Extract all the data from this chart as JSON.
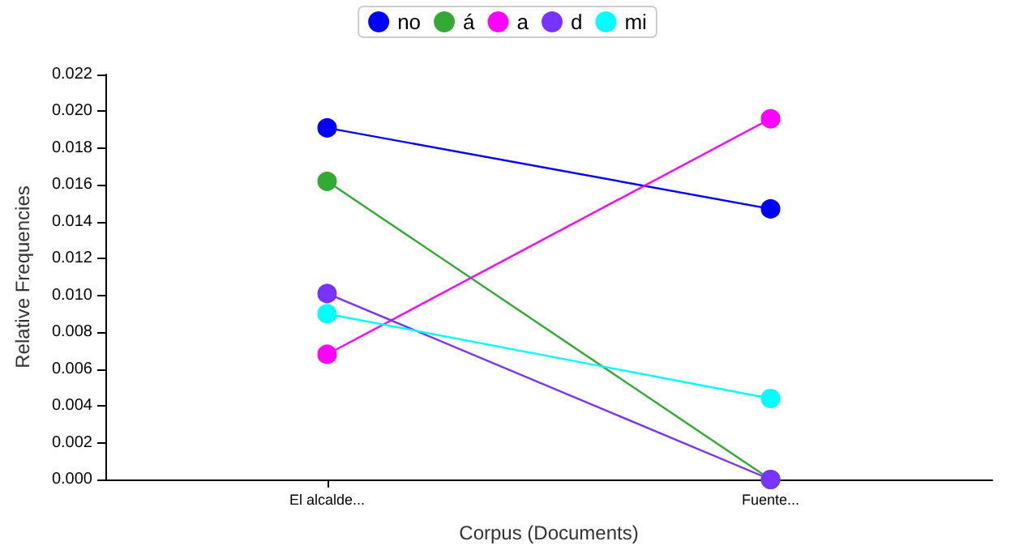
{
  "chart_data": {
    "type": "line",
    "xlabel": "Corpus (Documents)",
    "ylabel": "Relative Frequencies",
    "categories": [
      "El alcalde...",
      "Fuente..."
    ],
    "series": [
      {
        "name": "no",
        "color": "#0000ff",
        "values": [
          0.0191,
          0.0147
        ]
      },
      {
        "name": "á",
        "color": "#33aa33",
        "values": [
          0.0162,
          0
        ]
      },
      {
        "name": "a",
        "color": "#ff00ff",
        "values": [
          0.0068,
          0.0196
        ]
      },
      {
        "name": "d",
        "color": "#7733ff",
        "values": [
          0.0101,
          0
        ]
      },
      {
        "name": "mi",
        "color": "#00ffff",
        "values": [
          0.009,
          0.0044
        ]
      }
    ],
    "ylim": [
      0,
      0.022
    ],
    "yticks": [
      {
        "value": 0,
        "label": "0.000"
      },
      0.002,
      0.004,
      0.006,
      0.008,
      {
        "value": 0.01,
        "label": "0.010"
      },
      0.012,
      0.014,
      0.016,
      0.018,
      {
        "value": 0.02,
        "label": "0.020"
      },
      0.022
    ],
    "grid": false,
    "legend": "top",
    "marker": "circle",
    "line_style": "solid"
  }
}
